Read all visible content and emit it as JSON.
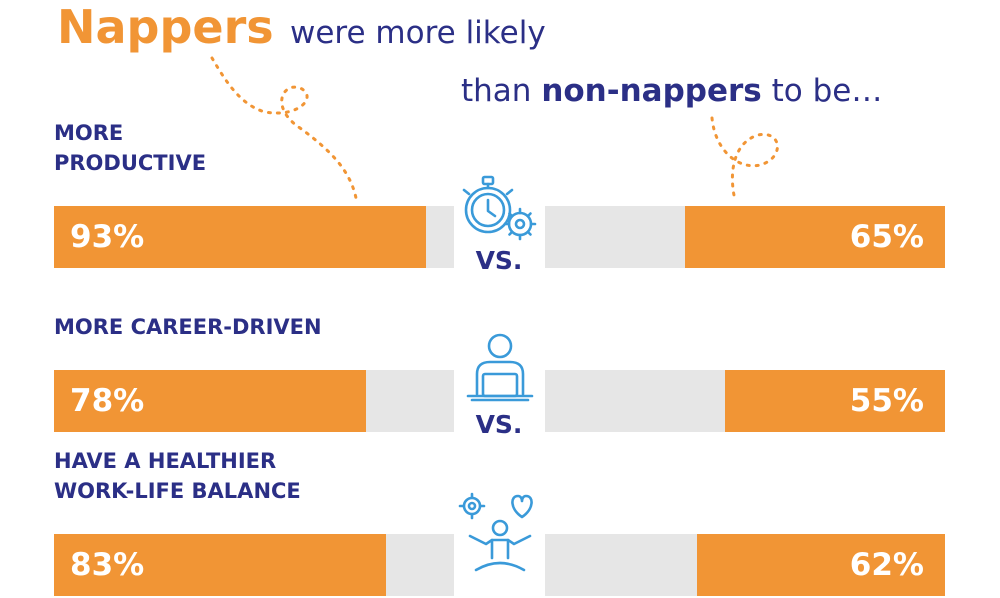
{
  "headline": {
    "strong": "Nappers",
    "line1": "were more likely",
    "line2_pre": "than ",
    "line2_strong": "non-nappers",
    "line2_post": " to be…"
  },
  "chart_data": {
    "type": "bar",
    "categories": [
      "MORE\nPRODUCTIVE",
      "MORE CAREER-DRIVEN",
      "HAVE A HEALTHIER\nWORK-LIFE BALANCE"
    ],
    "value_labels": {
      "nappers": [
        "93%",
        "78%",
        "83%"
      ],
      "non_nappers": [
        "65%",
        "55%",
        "62%"
      ]
    },
    "separator": "VS.",
    "series": [
      {
        "values": [
          93,
          78,
          83
        ]
      },
      {
        "values": [
          65,
          55,
          62
        ]
      }
    ],
    "ylim": [
      0,
      100
    ],
    "icons": [
      "stopwatch-gear-icon",
      "person-laptop-icon",
      "meditation-balance-icon"
    ],
    "colors": {
      "fill": "#f19535",
      "track": "#e6e6e6",
      "text": "#2b2f86"
    }
  }
}
